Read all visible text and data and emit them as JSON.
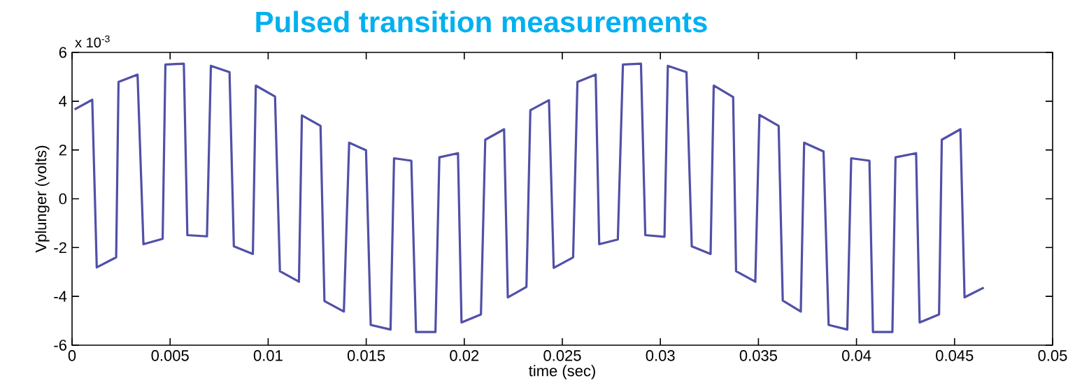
{
  "chart_data": {
    "type": "line",
    "title": "Pulsed transition measurements",
    "xlabel": "time (sec)",
    "ylabel": "Vplunger (volts)",
    "annotations": [
      "x 10$^{-3}$"
    ],
    "xlim": [
      0,
      0.05
    ],
    "ylim": [
      -6,
      6
    ],
    "xticks": [
      0,
      0.005,
      0.01,
      0.015,
      0.02,
      0.025,
      0.03,
      0.035,
      0.04,
      0.045,
      0.05
    ],
    "yticks": [
      -6,
      -4,
      -2,
      0,
      2,
      4,
      6
    ],
    "series": [
      {
        "color": "#5050a8",
        "x": [
          0.00013,
          0.00103,
          0.00126,
          0.00225,
          0.00237,
          0.00334,
          0.00364,
          0.00462,
          0.00476,
          0.0057,
          0.00588,
          0.00688,
          0.00708,
          0.00803,
          0.00825,
          0.00922,
          0.00937,
          0.01035,
          0.0106,
          0.01157,
          0.01172,
          0.01267,
          0.01287,
          0.01386,
          0.01413,
          0.01499,
          0.01523,
          0.01624,
          0.01642,
          0.0173,
          0.01754,
          0.01853,
          0.01873,
          0.01968,
          0.01986,
          0.02085,
          0.02107,
          0.02203,
          0.02222,
          0.02317,
          0.02337,
          0.02432,
          0.02456,
          0.02555,
          0.02577,
          0.0267,
          0.02688,
          0.02783,
          0.02809,
          0.02901,
          0.02923,
          0.03021,
          0.03038,
          0.03133,
          0.0316,
          0.03256,
          0.03272,
          0.03371,
          0.03386,
          0.03484,
          0.03505,
          0.03603,
          0.03624,
          0.03716,
          0.03733,
          0.03832,
          0.03858,
          0.03953,
          0.03973,
          0.04066,
          0.04084,
          0.04183,
          0.04199,
          0.04304,
          0.04322,
          0.04421,
          0.04435,
          0.0453,
          0.04551,
          0.04649
        ],
        "values": [
          3.66,
          4.06,
          -2.81,
          -2.4,
          4.79,
          5.09,
          -1.86,
          -1.64,
          5.5,
          5.54,
          -1.49,
          -1.54,
          5.45,
          5.19,
          -1.95,
          -2.26,
          4.64,
          4.19,
          -2.97,
          -3.4,
          3.42,
          2.99,
          -4.19,
          -4.62,
          2.3,
          1.99,
          -5.17,
          -5.36,
          1.66,
          1.56,
          -5.46,
          -5.46,
          1.7,
          1.87,
          -5.07,
          -4.74,
          2.42,
          2.85,
          -4.04,
          -3.61,
          3.63,
          4.04,
          -2.83,
          -2.4,
          4.79,
          5.09,
          -1.86,
          -1.67,
          5.5,
          5.54,
          -1.49,
          -1.56,
          5.45,
          5.19,
          -1.95,
          -2.26,
          4.64,
          4.17,
          -2.97,
          -3.4,
          3.44,
          2.99,
          -4.17,
          -4.62,
          2.3,
          1.94,
          -5.17,
          -5.36,
          1.66,
          1.56,
          -5.46,
          -5.46,
          1.7,
          1.87,
          -5.07,
          -4.74,
          2.42,
          2.85,
          -4.04,
          -3.64
        ]
      }
    ]
  }
}
